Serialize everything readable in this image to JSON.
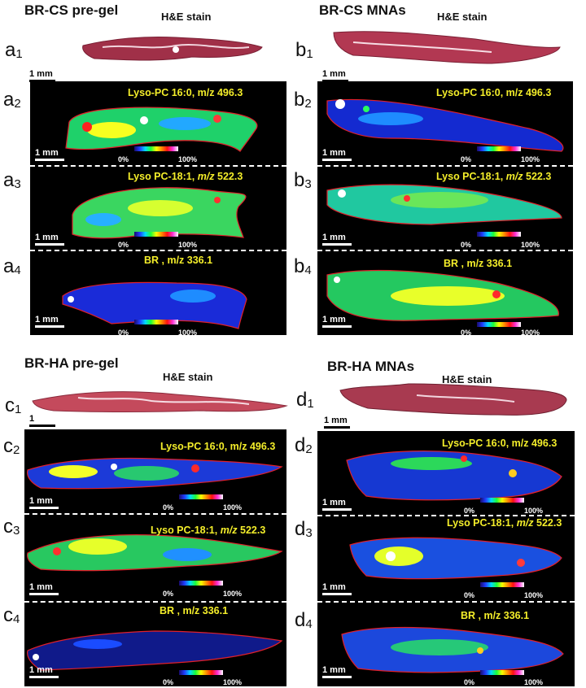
{
  "quadrants": {
    "a": {
      "title": "BR-CS pre-gel",
      "he_label": "H&E stain",
      "prefix": "a",
      "panel_labels": [
        "a1",
        "a2",
        "a3",
        "a4"
      ],
      "annotations": [
        [
          "Lyso-PC 16:0, m/z 496.3"
        ],
        [
          "Lyso PC-18:1, ",
          "m/z",
          " 522.3"
        ],
        [
          "BR ,  m/z 336.1"
        ]
      ]
    },
    "b": {
      "title": "BR-CS MNAs",
      "he_label": "H&E stain",
      "prefix": "b",
      "panel_labels": [
        "b1",
        "b2",
        "b3",
        "b4"
      ],
      "annotations": [
        [
          "Lyso-PC 16:0, m/z 496.3"
        ],
        [
          "Lyso PC-18:1, ",
          "m/z",
          " 522.3"
        ],
        [
          "BR ,  m/z 336.1"
        ]
      ]
    },
    "c": {
      "title": "BR-HA pre-gel",
      "he_label": "H&E stain",
      "prefix": "c",
      "panel_labels": [
        "c1",
        "c2",
        "c3",
        "c4"
      ],
      "annotations": [
        [
          "Lyso-PC 16:0, m/z 496.3"
        ],
        [
          "Lyso PC-18:1, ",
          "m/z",
          " 522.3"
        ],
        [
          "BR ,  m/z 336.1"
        ]
      ]
    },
    "d": {
      "title": "BR-HA MNAs",
      "he_label": "H&E stain",
      "prefix": "d",
      "panel_labels": [
        "d1",
        "d2",
        "d3",
        "d4"
      ],
      "annotations": [
        [
          "Lyso-PC 16:0, m/z 496.3"
        ],
        [
          "Lyso PC-18:1, ",
          "m/z",
          " 522.3"
        ],
        [
          "BR ,  m/z 336.1"
        ]
      ]
    }
  },
  "scale_label": "1 mm",
  "scale_label_c1": "1",
  "colorbar": {
    "min": "0%",
    "max": "100%"
  },
  "colors": {
    "annotation_text": "#f4ee2a",
    "tissue_outline": "#e0202a",
    "he_stain": "#a03048",
    "background": "#000000"
  }
}
